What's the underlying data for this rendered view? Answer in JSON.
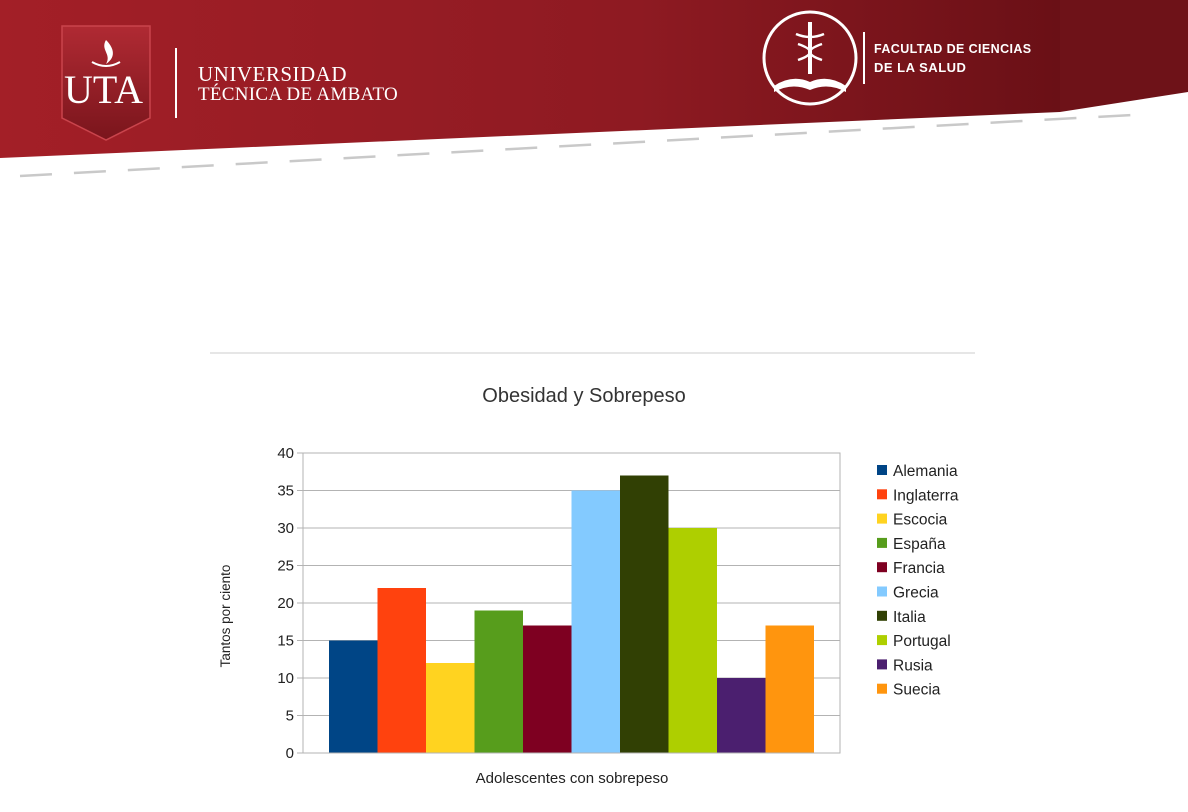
{
  "header": {
    "logo_text": "UTA",
    "university_line1": "UNIVERSIDAD",
    "university_line2": "TÉCNICA DE AMBATO",
    "faculty_line1": "FACULTAD DE CIENCIAS",
    "faculty_line2": "DE LA SALUD",
    "colors": {
      "banner": "#8e1a22",
      "banner_dark": "#6a1016"
    }
  },
  "chart_data": {
    "type": "bar",
    "title": "Obesidad y Sobrepeso",
    "xlabel": "Adolescentes con sobrepeso",
    "ylabel": "Tantos por ciento",
    "ylim": [
      0,
      40
    ],
    "yticks": [
      "0",
      "5",
      "10",
      "15",
      "20",
      "25",
      "30",
      "35",
      "40"
    ],
    "grid": true,
    "legend_position": "right",
    "series": [
      {
        "name": "Alemania",
        "value": 15,
        "color": "#004586"
      },
      {
        "name": "Inglaterra",
        "value": 22,
        "color": "#ff420e"
      },
      {
        "name": "Escocia",
        "value": 12,
        "color": "#ffd320"
      },
      {
        "name": "España",
        "value": 19,
        "color": "#579d1c"
      },
      {
        "name": "Francia",
        "value": 17,
        "color": "#7e0021"
      },
      {
        "name": "Grecia",
        "value": 35,
        "color": "#83caff"
      },
      {
        "name": "Italia",
        "value": 37,
        "color": "#314004"
      },
      {
        "name": "Portugal",
        "value": 30,
        "color": "#aecf00"
      },
      {
        "name": "Rusia",
        "value": 10,
        "color": "#4b1f6f"
      },
      {
        "name": "Suecia",
        "value": 17,
        "color": "#ff950e"
      }
    ]
  }
}
